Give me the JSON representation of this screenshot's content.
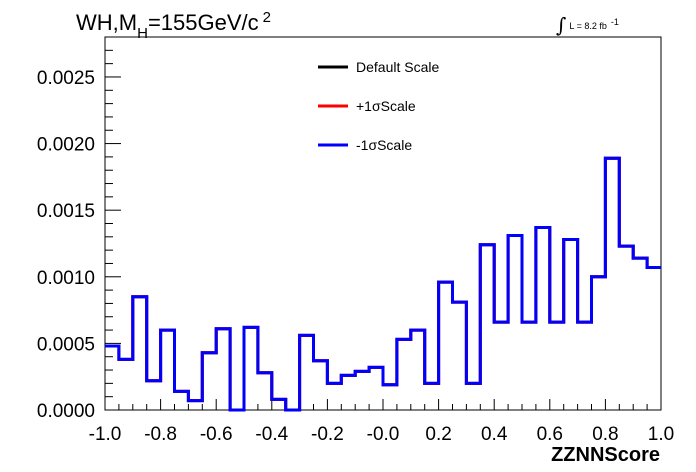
{
  "chart_data": {
    "type": "line",
    "title": {
      "main": "WH,M",
      "subscript": "H",
      "rest": "=155GeV/c",
      "superscript": "2"
    },
    "xlabel": "ZZNNScore",
    "ylabel": "",
    "xlim": [
      -1.0,
      1.0
    ],
    "ylim": [
      0.0,
      0.0028
    ],
    "x_ticks": [
      "-1.0",
      "-0.8",
      "-0.6",
      "-0.4",
      "-0.2",
      "-0.0",
      "0.2",
      "0.4",
      "0.6",
      "0.8",
      "1.0"
    ],
    "x_tick_values": [
      -1.0,
      -0.8,
      -0.6,
      -0.4,
      -0.2,
      0.0,
      0.2,
      0.4,
      0.6,
      0.8,
      1.0
    ],
    "y_ticks": [
      "0.0000",
      "0.0005",
      "0.0010",
      "0.0015",
      "0.0020",
      "0.0025"
    ],
    "y_tick_values": [
      0.0,
      0.0005,
      0.001,
      0.0015,
      0.002,
      0.0025
    ],
    "bin_edges": [
      -1.0,
      -0.95,
      -0.9,
      -0.85,
      -0.8,
      -0.75,
      -0.7,
      -0.65,
      -0.6,
      -0.55,
      -0.5,
      -0.45,
      -0.4,
      -0.35,
      -0.3,
      -0.25,
      -0.2,
      -0.15,
      -0.1,
      -0.05,
      0.0,
      0.05,
      0.1,
      0.15,
      0.2,
      0.25,
      0.3,
      0.35,
      0.4,
      0.45,
      0.5,
      0.55,
      0.6,
      0.65,
      0.7,
      0.75,
      0.8,
      0.85,
      0.9,
      0.95,
      1.0
    ],
    "series": [
      {
        "name": "Default Scale",
        "color": "#000000",
        "values": [
          0.00048,
          0.00038,
          0.00085,
          0.00022,
          0.0006,
          0.00014,
          7e-05,
          0.00043,
          0.00061,
          0.0,
          0.00062,
          0.00028,
          8e-05,
          0.0,
          0.00056,
          0.00037,
          0.0002,
          0.00026,
          0.00029,
          0.00032,
          0.00019,
          0.00053,
          0.0006,
          0.0002,
          0.00096,
          0.00081,
          0.0002,
          0.00124,
          0.00066,
          0.00131,
          0.00066,
          0.00137,
          0.00066,
          0.00128,
          0.00066,
          0.001,
          0.00189,
          0.00123,
          0.00114,
          0.00107
        ]
      },
      {
        "name": "+1σScale",
        "color": "#ff0000",
        "values": [
          0.00048,
          0.00038,
          0.00085,
          0.00022,
          0.0006,
          0.00014,
          7e-05,
          0.00043,
          0.00061,
          0.0,
          0.00062,
          0.00028,
          8e-05,
          0.0,
          0.00056,
          0.00037,
          0.0002,
          0.00026,
          0.00029,
          0.00032,
          0.00019,
          0.00053,
          0.0006,
          0.0002,
          0.00096,
          0.00081,
          0.0002,
          0.00124,
          0.00066,
          0.00131,
          0.00066,
          0.00137,
          0.00066,
          0.00128,
          0.00066,
          0.001,
          0.00189,
          0.00123,
          0.00114,
          0.00107
        ]
      },
      {
        "name": "-1σScale",
        "color": "#0000ff",
        "values": [
          0.00048,
          0.00038,
          0.00085,
          0.00022,
          0.0006,
          0.00014,
          7e-05,
          0.00043,
          0.00061,
          0.0,
          0.00062,
          0.00028,
          8e-05,
          0.0,
          0.00056,
          0.00037,
          0.0002,
          0.00026,
          0.00029,
          0.00032,
          0.00019,
          0.00053,
          0.0006,
          0.0002,
          0.00096,
          0.00081,
          0.0002,
          0.00124,
          0.00066,
          0.00131,
          0.00066,
          0.00137,
          0.00066,
          0.00128,
          0.00066,
          0.001,
          0.00189,
          0.00123,
          0.00114,
          0.00107
        ]
      }
    ],
    "lumi": {
      "integral_symbol": "∫",
      "text": "L = 8.2 fb",
      "superscript": "-1"
    },
    "legend": {
      "placement": "top-center"
    },
    "grid": false
  }
}
